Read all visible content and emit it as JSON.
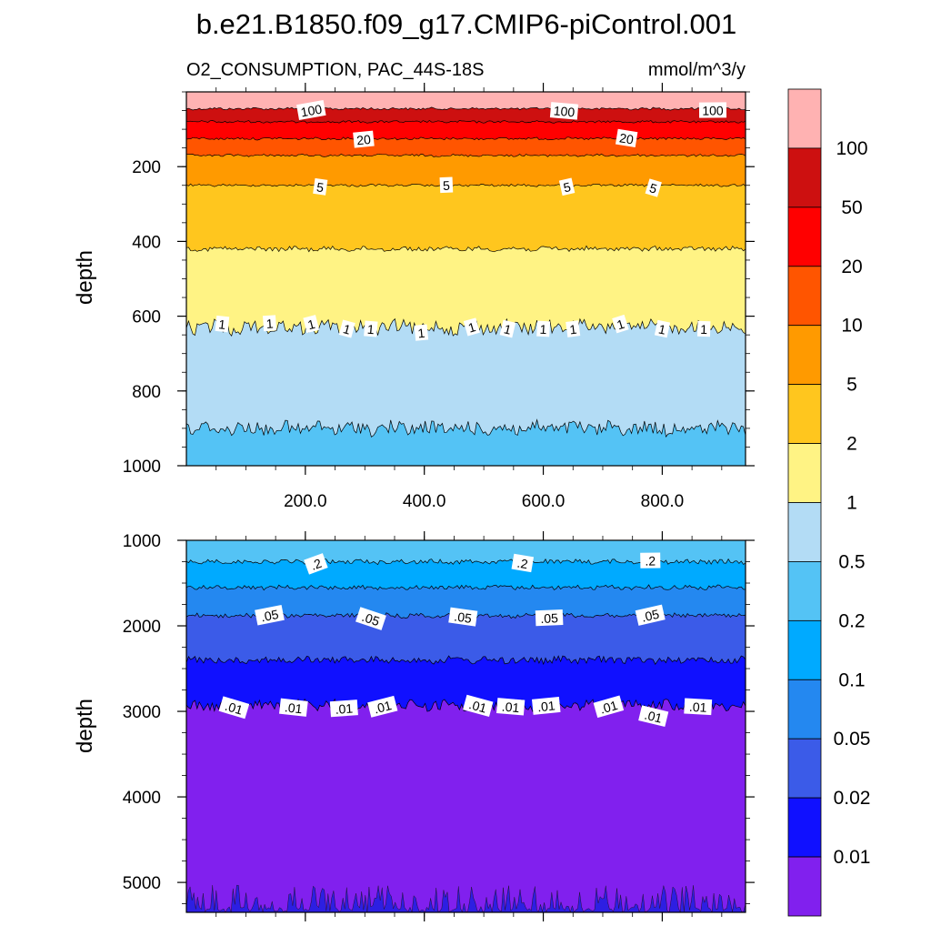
{
  "chart_data": {
    "type": "contour",
    "title": "b.e21.B1850.f09_g17.CMIP6-piControl.001",
    "variable_label": "O2_CONSUMPTION, PAC_44S-18S",
    "units_label": "mmol/m^3/y",
    "x_range": [
      0,
      940
    ],
    "x_ticks": [
      "200.0",
      "400.0",
      "600.0",
      "800.0"
    ],
    "panels": [
      {
        "name": "upper",
        "ylabel": "depth",
        "y_range": [
          0,
          1000
        ],
        "y_ticks": [
          "200",
          "400",
          "600",
          "800",
          "1000"
        ],
        "contour_depths": [
          {
            "level": "100",
            "depth": 45
          },
          {
            "level": "50",
            "depth": 80
          },
          {
            "level": "20",
            "depth": 125
          },
          {
            "level": "10",
            "depth": 170
          },
          {
            "level": "5",
            "depth": 250
          },
          {
            "level": "2",
            "depth": 420
          },
          {
            "level": "1",
            "depth": 630
          },
          {
            "level": "0.5",
            "depth": 900
          }
        ],
        "contour_labels": [
          {
            "text": "100",
            "x": 210,
            "depth": 50
          },
          {
            "text": "100",
            "x": 635,
            "depth": 52
          },
          {
            "text": "100",
            "x": 885,
            "depth": 50
          },
          {
            "text": "20",
            "x": 298,
            "depth": 128
          },
          {
            "text": "20",
            "x": 740,
            "depth": 125
          },
          {
            "text": "5",
            "x": 225,
            "depth": 255
          },
          {
            "text": "5",
            "x": 437,
            "depth": 250
          },
          {
            "text": "5",
            "x": 640,
            "depth": 255
          },
          {
            "text": "5",
            "x": 785,
            "depth": 258
          },
          {
            "text": "1",
            "x": 60,
            "depth": 622
          },
          {
            "text": "1",
            "x": 140,
            "depth": 620
          },
          {
            "text": "1",
            "x": 210,
            "depth": 622
          },
          {
            "text": "1",
            "x": 270,
            "depth": 635
          },
          {
            "text": "1",
            "x": 310,
            "depth": 635
          },
          {
            "text": "1",
            "x": 395,
            "depth": 645
          },
          {
            "text": "1",
            "x": 480,
            "depth": 630
          },
          {
            "text": "1",
            "x": 540,
            "depth": 635
          },
          {
            "text": "1",
            "x": 600,
            "depth": 635
          },
          {
            "text": "1",
            "x": 650,
            "depth": 635
          },
          {
            "text": "1",
            "x": 730,
            "depth": 622
          },
          {
            "text": "1",
            "x": 800,
            "depth": 635
          },
          {
            "text": "1",
            "x": 870,
            "depth": 635
          }
        ]
      },
      {
        "name": "lower",
        "ylabel": "depth",
        "y_range": [
          1000,
          5350
        ],
        "y_ticks": [
          "1000",
          "2000",
          "3000",
          "4000",
          "5000"
        ],
        "contour_depths": [
          {
            "level": "0.2",
            "depth": 1250
          },
          {
            "level": "0.1",
            "depth": 1550
          },
          {
            "level": "0.05",
            "depth": 1880
          },
          {
            "level": "0.02",
            "depth": 2400
          },
          {
            "level": "0.01",
            "depth": 2930
          }
        ],
        "contour_labels": [
          {
            "text": ".2",
            "x": 218,
            "depth": 1280
          },
          {
            "text": ".2",
            "x": 565,
            "depth": 1270
          },
          {
            "text": ".2",
            "x": 780,
            "depth": 1240
          },
          {
            "text": ".05",
            "x": 140,
            "depth": 1880
          },
          {
            "text": ".05",
            "x": 310,
            "depth": 1920
          },
          {
            "text": ".05",
            "x": 465,
            "depth": 1900
          },
          {
            "text": ".05",
            "x": 610,
            "depth": 1910
          },
          {
            "text": ".05",
            "x": 780,
            "depth": 1880
          },
          {
            "text": ".01",
            "x": 80,
            "depth": 2960
          },
          {
            "text": ".01",
            "x": 180,
            "depth": 2960
          },
          {
            "text": ".01",
            "x": 265,
            "depth": 2970
          },
          {
            "text": ".01",
            "x": 330,
            "depth": 2950
          },
          {
            "text": ".01",
            "x": 490,
            "depth": 2940
          },
          {
            "text": ".01",
            "x": 545,
            "depth": 2950
          },
          {
            "text": ".01",
            "x": 605,
            "depth": 2940
          },
          {
            "text": ".01",
            "x": 710,
            "depth": 2950
          },
          {
            "text": ".01",
            "x": 785,
            "depth": 3060
          },
          {
            "text": ".01",
            "x": 860,
            "depth": 2950
          }
        ]
      }
    ],
    "colorbar": {
      "levels": [
        "100",
        "50",
        "20",
        "10",
        "5",
        "2",
        "1",
        "0.5",
        "0.2",
        "0.1",
        "0.05",
        "0.02",
        "0.01"
      ],
      "colors": [
        "#ffb2b2",
        "#cd1010",
        "#ff0000",
        "#ff5500",
        "#ff9a00",
        "#ffc61e",
        "#fff384",
        "#b3dcf5",
        "#54c3f5",
        "#00aaff",
        "#2488f0",
        "#3b5be8",
        "#1010ff",
        "#8120ee"
      ]
    }
  }
}
